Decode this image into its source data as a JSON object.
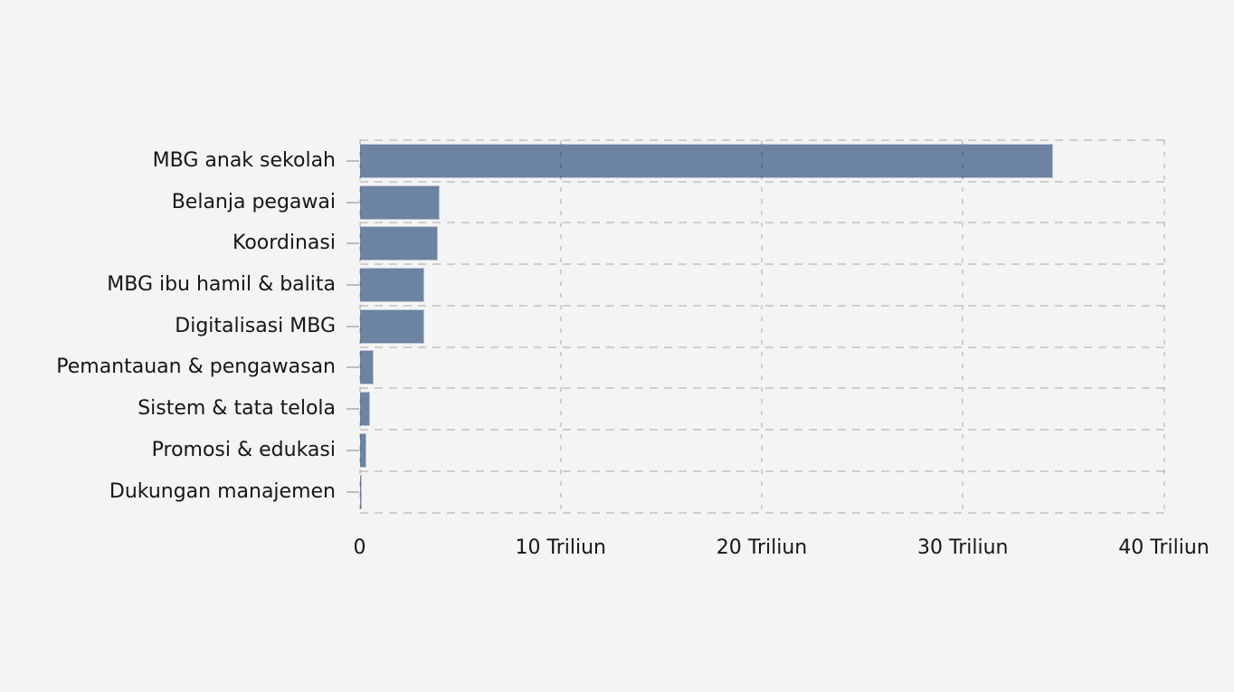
{
  "page": {
    "background_color": "#f4f4f5"
  },
  "chart_data": {
    "type": "bar",
    "orientation": "horizontal",
    "title": "",
    "xlabel": "",
    "ylabel": "",
    "unit": "Triliun",
    "categories": [
      "MBG anak sekolah",
      "Belanja pegawai",
      "Koordinasi",
      "MBG ibu hamil & balita",
      "Digitalisasi MBG",
      "Pemantauan & pengawasan",
      "Sistem & tata telola",
      "Promosi & edukasi",
      "Dukungan manajemen"
    ],
    "values": [
      34.5,
      4.0,
      3.9,
      3.2,
      3.2,
      0.7,
      0.5,
      0.35,
      0.12
    ],
    "xlim": [
      0,
      40
    ],
    "x_ticks": [
      {
        "value": 0,
        "label": "0"
      },
      {
        "value": 10,
        "label": "10 Triliun"
      },
      {
        "value": 20,
        "label": "20 Triliun"
      },
      {
        "value": 30,
        "label": "30 Triliun"
      },
      {
        "value": 40,
        "label": "40 Triliun"
      }
    ],
    "grid": true,
    "grid_style": "dashed",
    "legend": false,
    "colors": {
      "bar_fill": "#6d83a2",
      "bar_border": "#b9c3d4",
      "grid_line": "#c9c9c9",
      "category_tick": "#bdbdbd",
      "text": "#161616",
      "background": "#f4f4f5"
    }
  }
}
